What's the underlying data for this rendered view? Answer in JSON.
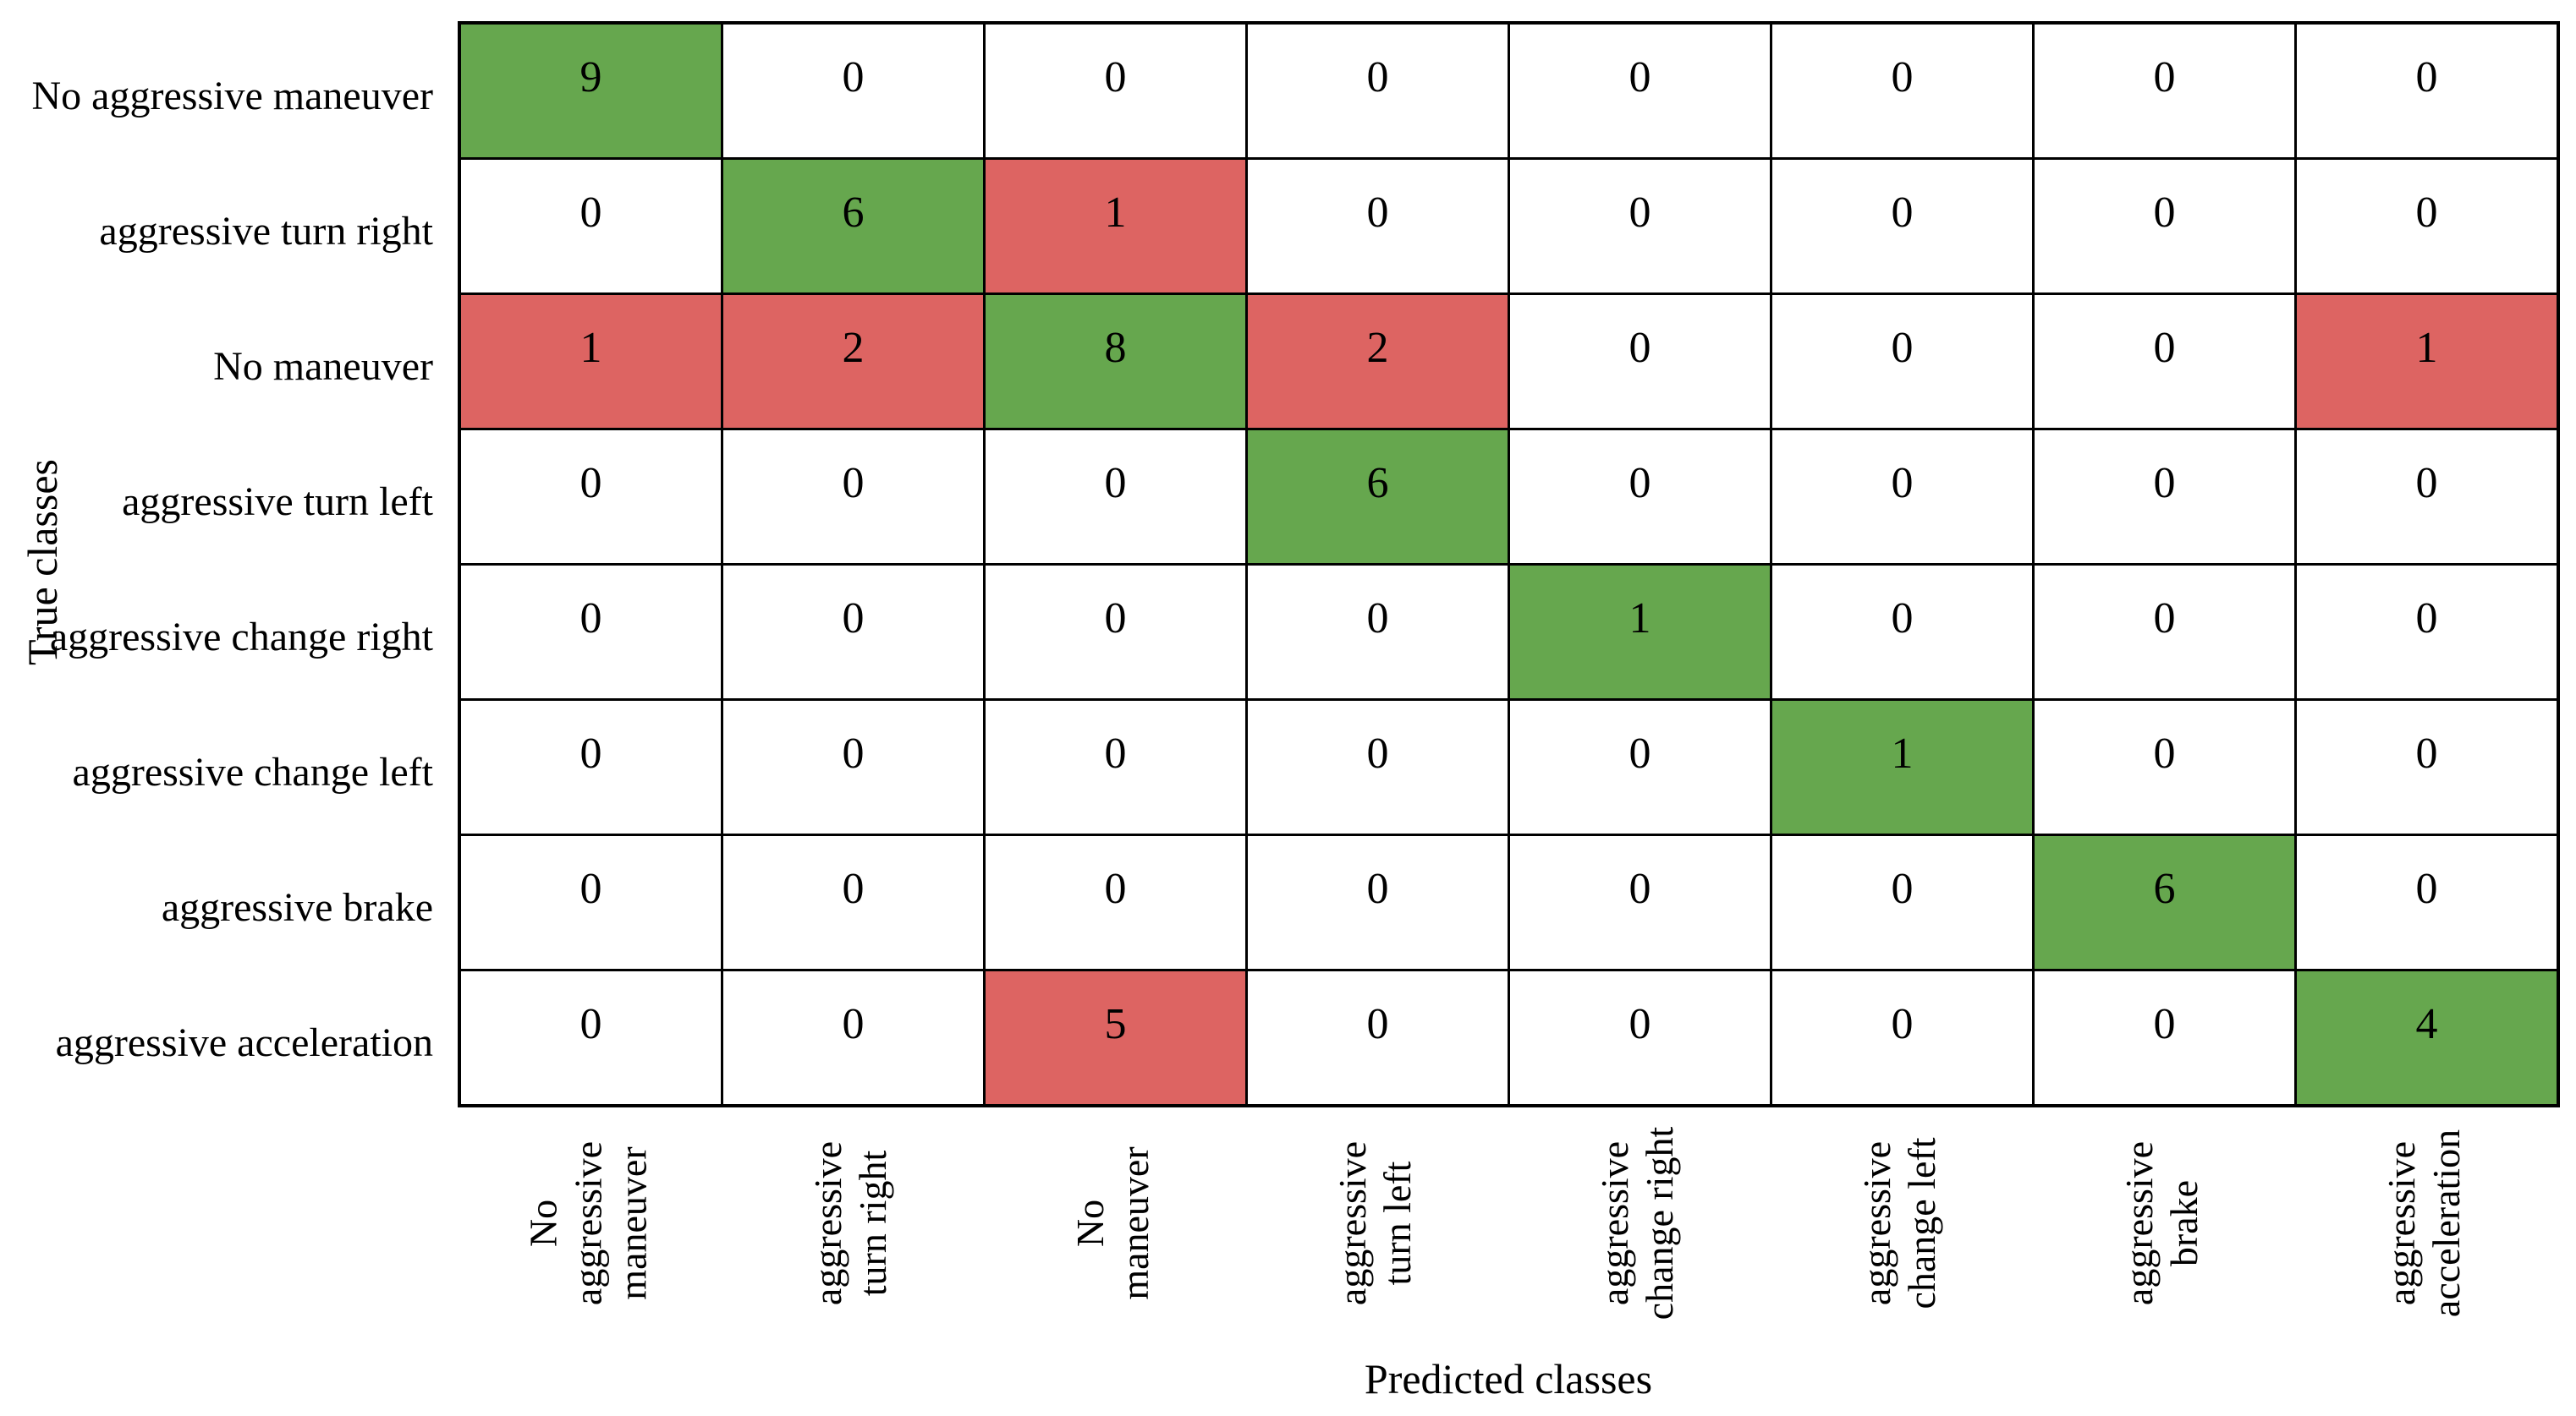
{
  "axes": {
    "y_title": "True classes",
    "x_title": "Predicted classes"
  },
  "chart_data": {
    "type": "heatmap",
    "title": "",
    "xlabel": "Predicted classes",
    "ylabel": "True classes",
    "legend": "none",
    "grid": "cell-borders",
    "row_labels": [
      "No aggressive maneuver",
      "aggressive turn right",
      "No maneuver",
      "aggressive turn left",
      "aggressive change right",
      "aggressive change left",
      "aggressive brake",
      "aggressive acceleration"
    ],
    "col_labels": [
      [
        "No",
        "aggressive",
        "maneuver"
      ],
      [
        "aggressive",
        "turn right"
      ],
      [
        "No",
        "maneuver"
      ],
      [
        "aggressive",
        "turn left"
      ],
      [
        "aggressive",
        "change right"
      ],
      [
        "aggressive",
        "change left"
      ],
      [
        "aggressive",
        "brake"
      ],
      [
        "aggressive",
        "acceleration"
      ]
    ],
    "matrix": [
      [
        9,
        0,
        0,
        0,
        0,
        0,
        0,
        0
      ],
      [
        0,
        6,
        1,
        0,
        0,
        0,
        0,
        0
      ],
      [
        1,
        2,
        8,
        2,
        0,
        0,
        0,
        1
      ],
      [
        0,
        0,
        0,
        6,
        0,
        0,
        0,
        0
      ],
      [
        0,
        0,
        0,
        0,
        1,
        0,
        0,
        0
      ],
      [
        0,
        0,
        0,
        0,
        0,
        1,
        0,
        0
      ],
      [
        0,
        0,
        0,
        0,
        0,
        0,
        6,
        0
      ],
      [
        0,
        0,
        5,
        0,
        0,
        0,
        0,
        4
      ]
    ],
    "colors": {
      "diagonal_nonzero": "#66a74e",
      "offdiagonal_nonzero": "#dd6462",
      "zero": "#ffffff",
      "border": "#000000",
      "text": "#000000"
    }
  }
}
